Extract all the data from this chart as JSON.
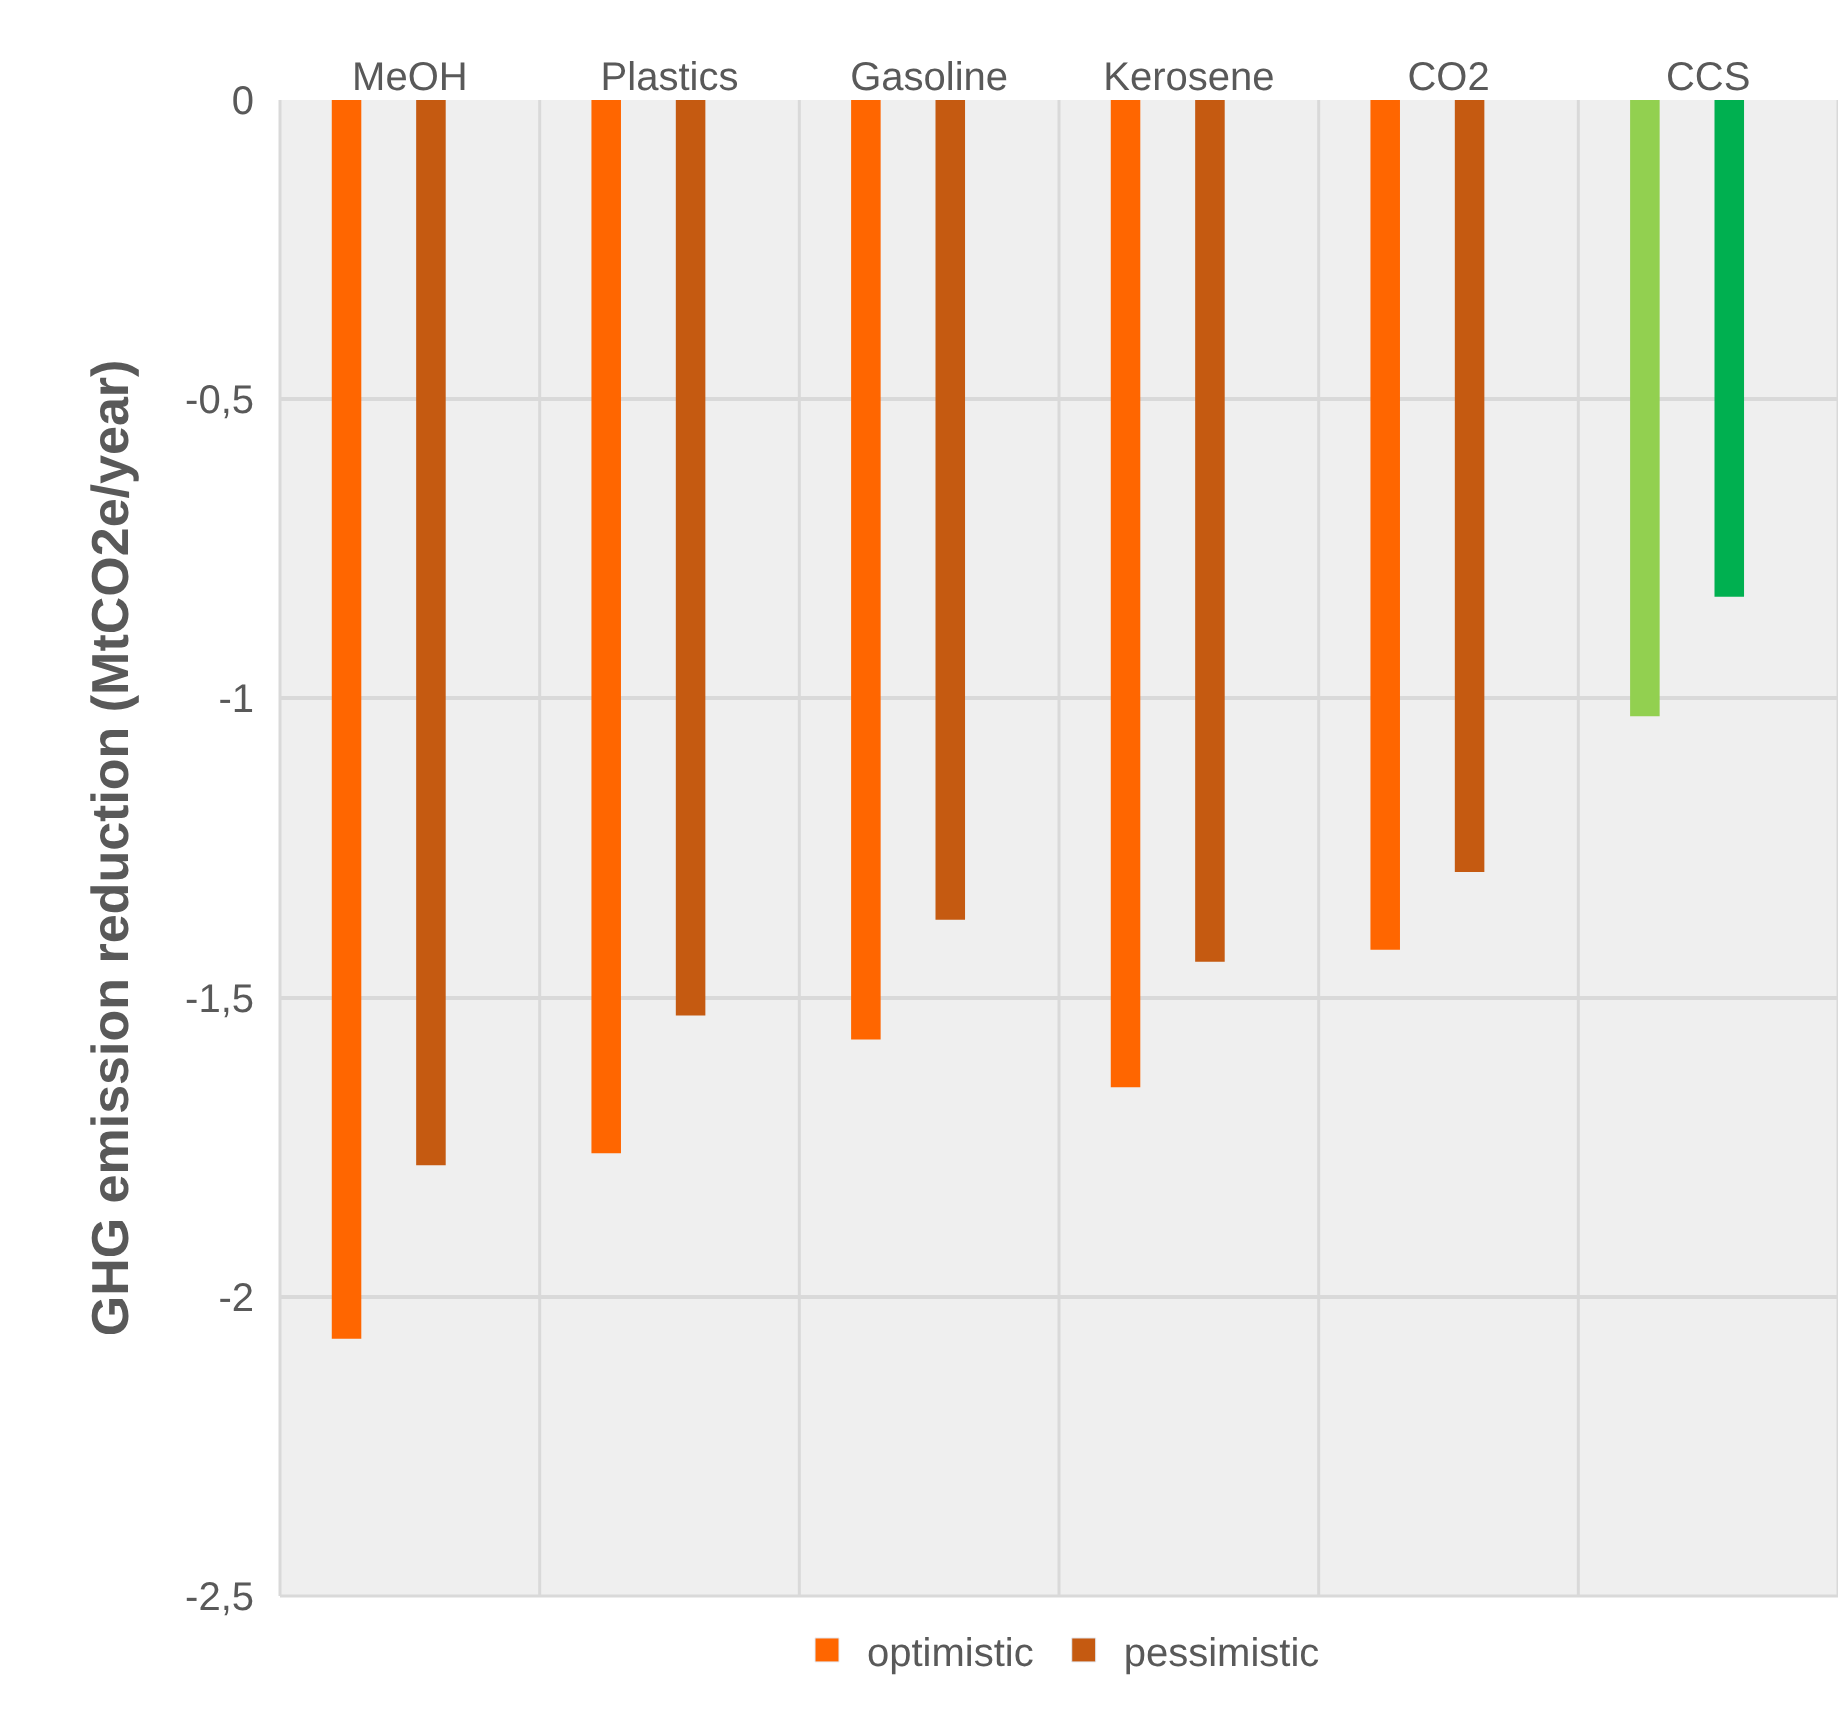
{
  "chart_data": {
    "type": "bar",
    "ylabel": "GHG emission reduction (MtCO2e/year)",
    "categories": [
      "MeOH",
      "Plastics",
      "Gasoline",
      "Kerosene",
      "CO2",
      "CCS"
    ],
    "series": [
      {
        "name": "optimistic",
        "color": "#ff6600",
        "colors": [
          "#ff6600",
          "#ff6600",
          "#ff6600",
          "#ff6600",
          "#ff6600",
          "#92d050"
        ],
        "values": [
          -2.07,
          -1.76,
          -1.57,
          -1.65,
          -1.42,
          -1.03
        ]
      },
      {
        "name": "pessimistic",
        "color": "#c55a11",
        "colors": [
          "#c55a11",
          "#c55a11",
          "#c55a11",
          "#c55a11",
          "#c55a11",
          "#00b050"
        ],
        "values": [
          -1.78,
          -1.53,
          -1.37,
          -1.44,
          -1.29,
          -0.83
        ]
      }
    ],
    "ylim": [
      -2.5,
      0
    ],
    "yticks": [
      {
        "value": 0,
        "label": "0"
      },
      {
        "value": -0.5,
        "label": "-0,5"
      },
      {
        "value": -1,
        "label": "-1"
      },
      {
        "value": -1.5,
        "label": "-1,5"
      },
      {
        "value": -2,
        "label": "-2"
      },
      {
        "value": -2.5,
        "label": "-2,5"
      }
    ],
    "grid": true,
    "legend": "bottom"
  }
}
